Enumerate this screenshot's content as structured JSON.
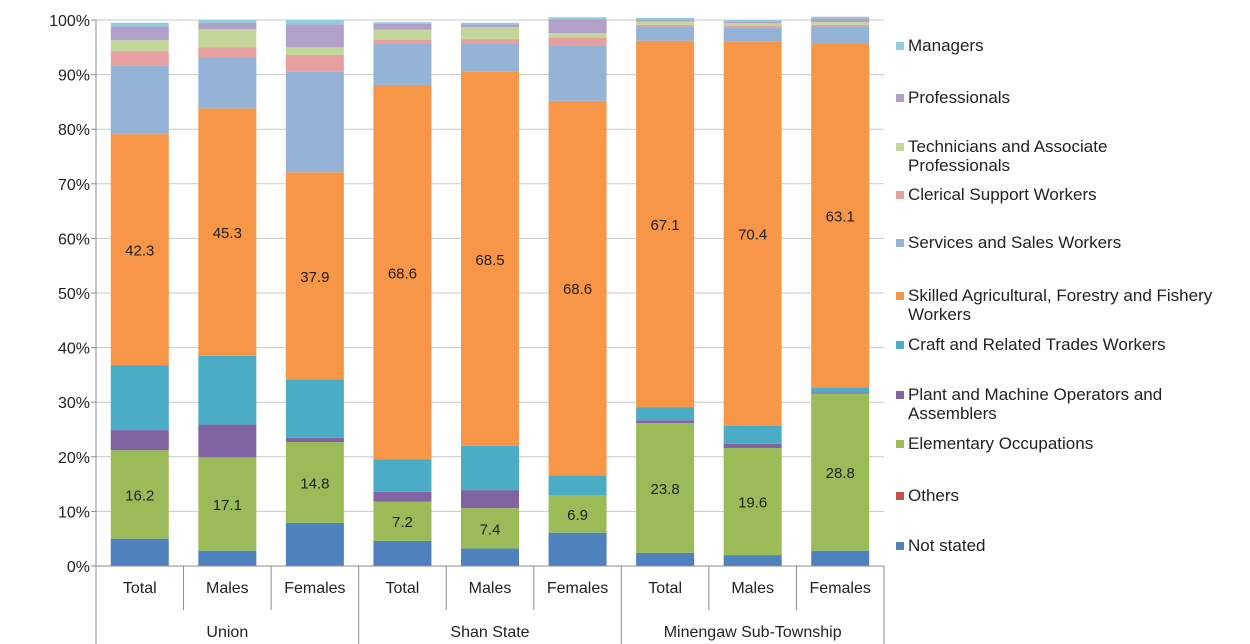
{
  "chart_data": {
    "type": "bar",
    "stacked": true,
    "percent": true,
    "ylim": [
      0,
      100
    ],
    "yticks": [
      "0%",
      "10%",
      "20%",
      "30%",
      "40%",
      "50%",
      "60%",
      "70%",
      "80%",
      "90%",
      "100%"
    ],
    "grid": true,
    "legend_position": "right",
    "categories": [
      "Total",
      "Males",
      "Females",
      "Total",
      "Males",
      "Females",
      "Total",
      "Males",
      "Females"
    ],
    "groups": [
      "Union",
      "Shan State",
      "Minengaw Sub-Township"
    ],
    "series": [
      {
        "name": "Not stated",
        "color": "#4f81bd",
        "values": [
          5.0,
          2.8,
          7.9,
          4.6,
          3.2,
          6.1,
          2.4,
          2.0,
          2.8
        ]
      },
      {
        "name": "Others",
        "color": "#c0504d",
        "values": [
          0.0,
          0.0,
          0.0,
          0.0,
          0.0,
          0.0,
          0.0,
          0.0,
          0.0
        ]
      },
      {
        "name": "Elementary Occupations",
        "color": "#9bbb59",
        "values": [
          16.2,
          17.1,
          14.8,
          7.2,
          7.4,
          6.9,
          23.8,
          19.6,
          28.8
        ],
        "labels": [
          "16.2",
          "17.1",
          "14.8",
          "7.2",
          "7.4",
          "6.9",
          "23.8",
          "19.6",
          "28.8"
        ]
      },
      {
        "name": "Plant and Machine Operators and Assemblers",
        "color": "#8064a2",
        "values": [
          3.7,
          6.0,
          0.8,
          1.8,
          3.3,
          0.0,
          0.5,
          0.8,
          0.2
        ]
      },
      {
        "name": "Craft and Related Trades Workers",
        "color": "#4bacc6",
        "values": [
          11.9,
          12.6,
          10.7,
          5.9,
          8.1,
          3.6,
          2.4,
          3.3,
          0.8
        ]
      },
      {
        "name": "Skilled Agricultural, Forestry and Fishery Workers",
        "color": "#f79646",
        "values": [
          42.3,
          45.3,
          37.9,
          68.6,
          68.5,
          68.6,
          67.1,
          70.4,
          63.1
        ],
        "labels": [
          "42.3",
          "45.3",
          "37.9",
          "68.6",
          "68.5",
          "68.6",
          "67.1",
          "70.4",
          "63.1"
        ]
      },
      {
        "name": "Services and Sales Workers",
        "color": "#95b3d7",
        "values": [
          12.6,
          9.4,
          18.5,
          7.5,
          5.2,
          10.2,
          2.6,
          2.5,
          3.1
        ]
      },
      {
        "name": "Clerical Support Workers",
        "color": "#e6a0a0",
        "values": [
          2.6,
          1.8,
          3.0,
          0.8,
          0.8,
          1.3,
          0.3,
          0.3,
          0.3
        ]
      },
      {
        "name": "Technicians and Associate Professionals",
        "color": "#c4d79b",
        "values": [
          2.0,
          3.3,
          1.4,
          1.8,
          2.2,
          0.9,
          0.6,
          0.5,
          0.5
        ]
      },
      {
        "name": "Professionals",
        "color": "#b1a0c7",
        "values": [
          2.5,
          1.2,
          4.2,
          1.1,
          0.5,
          2.5,
          0.4,
          0.3,
          0.7
        ]
      },
      {
        "name": "Managers",
        "color": "#92cddc",
        "values": [
          0.7,
          0.5,
          0.8,
          0.3,
          0.3,
          0.4,
          0.3,
          0.3,
          0.3
        ]
      }
    ]
  }
}
